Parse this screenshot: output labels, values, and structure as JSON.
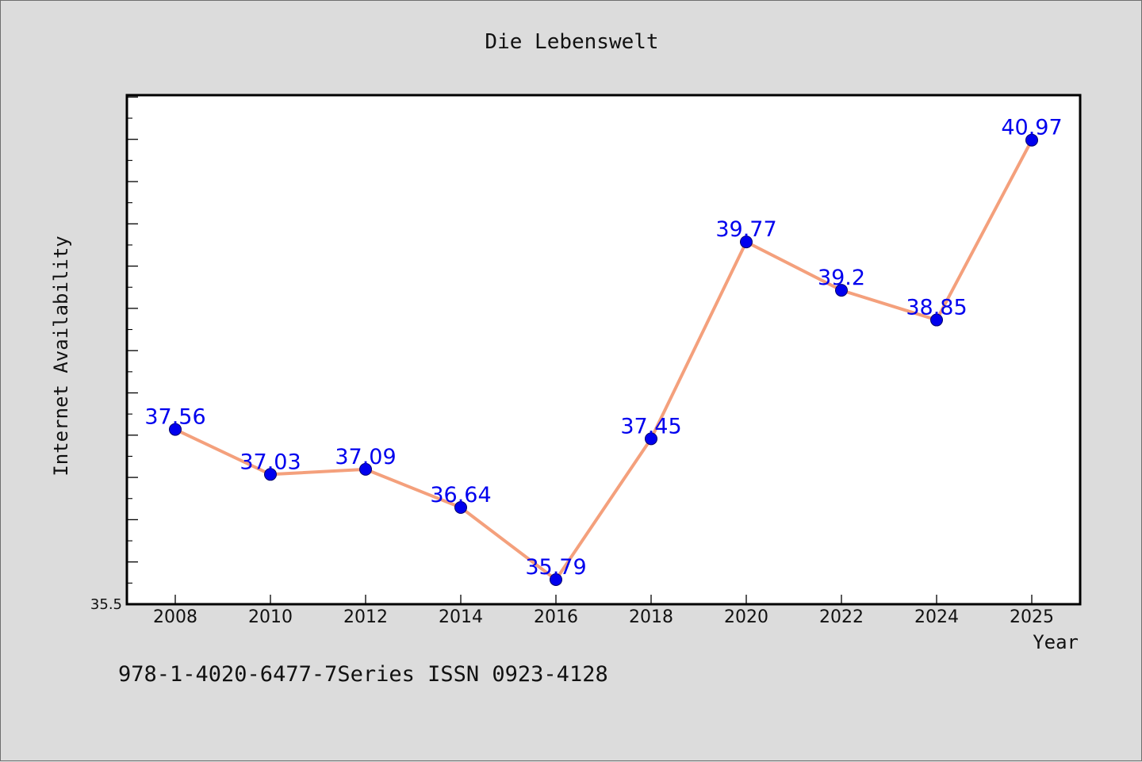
{
  "chart_data": {
    "type": "line",
    "title": "Die Lebenswelt",
    "xlabel": "Year",
    "ylabel": "Internet Availability",
    "x": [
      "2008",
      "2010",
      "2012",
      "2014",
      "2016",
      "2018",
      "2020",
      "2022",
      "2024",
      "2025"
    ],
    "series": [
      {
        "values": [
          37.56,
          37.03,
          37.09,
          36.64,
          35.79,
          37.45,
          39.77,
          39.2,
          38.85,
          40.97
        ],
        "data_labels": [
          "37.56",
          "37.03",
          "37.09",
          "36.64",
          "35.79",
          "37.45",
          "39.77",
          "39.2",
          "38.85",
          "40.97"
        ]
      }
    ],
    "ylim": [
      35.5,
      41.5
    ],
    "y_tick_labels": [
      "35.5"
    ],
    "grid": false,
    "line_color": "#f4a07c",
    "marker_color": "#0000ee",
    "label_color": "#0000ee"
  },
  "footnote": "978-1-4020-6477-7Series ISSN 0923-4128"
}
